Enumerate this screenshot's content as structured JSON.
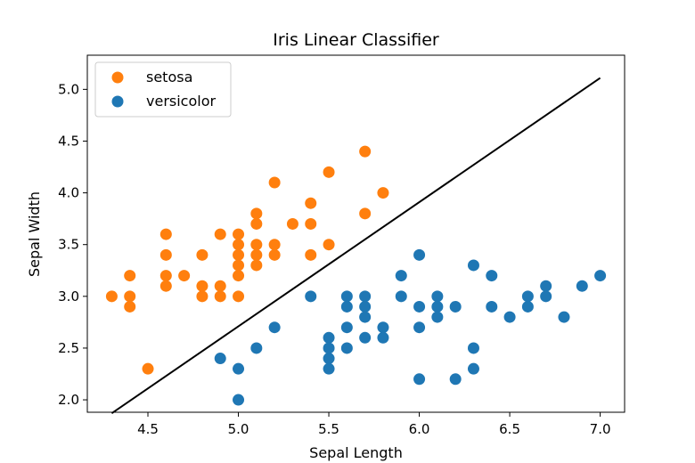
{
  "chart_data": {
    "type": "scatter",
    "title": "Iris Linear Classifier",
    "xlabel": "Sepal Length",
    "ylabel": "Sepal Width",
    "xlim": [
      4.165,
      7.135
    ],
    "ylim": [
      1.88,
      5.33
    ],
    "xticks": [
      4.5,
      5.0,
      5.5,
      6.0,
      6.5,
      7.0
    ],
    "xtick_labels": [
      "4.5",
      "5.0",
      "5.5",
      "6.0",
      "6.5",
      "7.0"
    ],
    "yticks": [
      2.0,
      2.5,
      3.0,
      3.5,
      4.0,
      4.5,
      5.0
    ],
    "ytick_labels": [
      "2.0",
      "2.5",
      "3.0",
      "3.5",
      "4.0",
      "4.5",
      "5.0"
    ],
    "grid": false,
    "legend_position": "top-left",
    "series": [
      {
        "name": "setosa",
        "color": "#ff7f0e",
        "points": [
          [
            4.3,
            3.0
          ],
          [
            4.4,
            3.2
          ],
          [
            4.4,
            3.0
          ],
          [
            4.4,
            2.9
          ],
          [
            4.5,
            2.3
          ],
          [
            4.6,
            3.6
          ],
          [
            4.6,
            3.4
          ],
          [
            4.6,
            3.2
          ],
          [
            4.6,
            3.1
          ],
          [
            4.7,
            3.2
          ],
          [
            4.8,
            3.4
          ],
          [
            4.8,
            3.1
          ],
          [
            4.8,
            3.0
          ],
          [
            4.9,
            3.6
          ],
          [
            4.9,
            3.1
          ],
          [
            4.9,
            3.0
          ],
          [
            5.0,
            3.6
          ],
          [
            5.0,
            3.5
          ],
          [
            5.0,
            3.4
          ],
          [
            5.0,
            3.3
          ],
          [
            5.0,
            3.2
          ],
          [
            5.0,
            3.0
          ],
          [
            5.1,
            3.8
          ],
          [
            5.1,
            3.7
          ],
          [
            5.1,
            3.5
          ],
          [
            5.1,
            3.4
          ],
          [
            5.1,
            3.3
          ],
          [
            5.2,
            4.1
          ],
          [
            5.2,
            3.5
          ],
          [
            5.2,
            3.4
          ],
          [
            5.3,
            3.7
          ],
          [
            5.4,
            3.9
          ],
          [
            5.4,
            3.7
          ],
          [
            5.4,
            3.4
          ],
          [
            5.5,
            4.2
          ],
          [
            5.5,
            3.5
          ],
          [
            5.7,
            4.4
          ],
          [
            5.7,
            3.8
          ],
          [
            5.8,
            4.0
          ]
        ]
      },
      {
        "name": "versicolor",
        "color": "#1f77b4",
        "points": [
          [
            4.9,
            2.4
          ],
          [
            5.0,
            2.3
          ],
          [
            5.0,
            2.0
          ],
          [
            5.1,
            2.5
          ],
          [
            5.2,
            2.7
          ],
          [
            5.4,
            3.0
          ],
          [
            5.5,
            2.6
          ],
          [
            5.5,
            2.5
          ],
          [
            5.5,
            2.4
          ],
          [
            5.5,
            2.3
          ],
          [
            5.6,
            3.0
          ],
          [
            5.6,
            2.9
          ],
          [
            5.6,
            2.7
          ],
          [
            5.6,
            2.5
          ],
          [
            5.7,
            3.0
          ],
          [
            5.7,
            2.9
          ],
          [
            5.7,
            2.8
          ],
          [
            5.7,
            2.6
          ],
          [
            5.8,
            2.7
          ],
          [
            5.8,
            2.6
          ],
          [
            5.9,
            3.2
          ],
          [
            5.9,
            3.0
          ],
          [
            6.0,
            3.4
          ],
          [
            6.0,
            2.9
          ],
          [
            6.0,
            2.7
          ],
          [
            6.0,
            2.2
          ],
          [
            6.1,
            3.0
          ],
          [
            6.1,
            2.9
          ],
          [
            6.1,
            2.8
          ],
          [
            6.2,
            2.9
          ],
          [
            6.2,
            2.2
          ],
          [
            6.3,
            3.3
          ],
          [
            6.3,
            2.5
          ],
          [
            6.3,
            2.3
          ],
          [
            6.4,
            3.2
          ],
          [
            6.4,
            2.9
          ],
          [
            6.5,
            2.8
          ],
          [
            6.6,
            3.0
          ],
          [
            6.6,
            2.9
          ],
          [
            6.7,
            3.1
          ],
          [
            6.7,
            3.0
          ],
          [
            6.8,
            2.8
          ],
          [
            6.9,
            3.1
          ],
          [
            7.0,
            3.2
          ]
        ]
      }
    ],
    "decision_boundary": {
      "color": "#000000",
      "points": [
        [
          4.3,
          1.87
        ],
        [
          7.0,
          5.11
        ]
      ]
    }
  }
}
